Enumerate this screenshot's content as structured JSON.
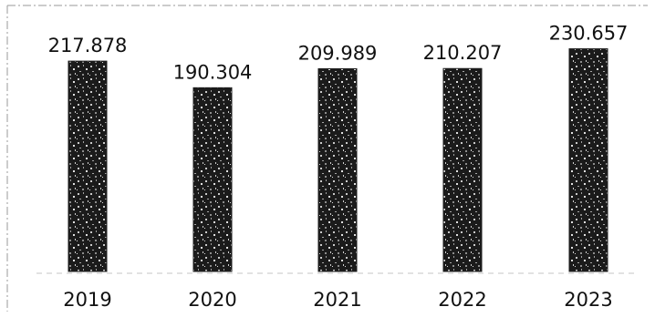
{
  "chart_data": {
    "type": "bar",
    "categories": [
      "2019",
      "2020",
      "2021",
      "2022",
      "2023"
    ],
    "values": [
      217.878,
      190.304,
      209.989,
      210.207,
      230.657
    ],
    "value_labels": [
      "217.878",
      "190.304",
      "209.989",
      "210.207",
      "230.657"
    ],
    "title": "",
    "xlabel": "",
    "ylabel": "",
    "ylim": [
      0,
      240
    ],
    "grid": false,
    "legend": "none",
    "colors": {
      "bar_dark": "#1b1b1b",
      "bar_light": "#b8b8b8",
      "text": "#111111",
      "frame": "#9a9a9a"
    }
  }
}
